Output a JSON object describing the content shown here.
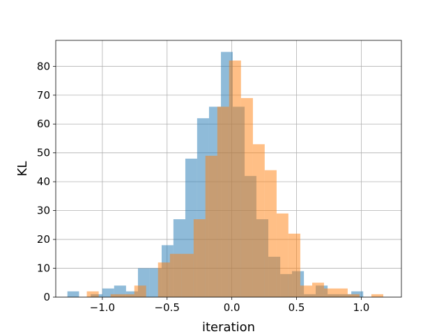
{
  "chart_data": {
    "type": "histogram",
    "title": "",
    "xlabel": "iteration",
    "ylabel": "KL",
    "xlim": [
      -1.36,
      1.31
    ],
    "ylim": [
      0,
      89
    ],
    "grid": true,
    "legend": "none",
    "bin_width": 0.0917,
    "x_ticks": [
      -1.0,
      -0.5,
      0.0,
      0.5,
      1.0
    ],
    "x_tick_labels": [
      "−1.0",
      "−0.5",
      "0.0",
      "0.5",
      "1.0"
    ],
    "y_ticks": [
      0,
      10,
      20,
      30,
      40,
      50,
      60,
      70,
      80
    ],
    "y_tick_labels": [
      "0",
      "10",
      "20",
      "30",
      "40",
      "50",
      "60",
      "70",
      "80"
    ],
    "series": [
      {
        "color": "#1f77b4",
        "alpha": 0.5,
        "bin_edges": [
          -1.27,
          -1.18,
          -1.09,
          -1.0,
          -0.909,
          -0.817,
          -0.725,
          -0.634,
          -0.542,
          -0.451,
          -0.359,
          -0.268,
          -0.176,
          -0.084,
          0.007,
          0.099,
          0.19,
          0.282,
          0.374,
          0.465,
          0.557,
          0.648,
          0.74,
          0.832,
          0.923,
          1.015
        ],
        "counts": [
          2,
          0,
          1,
          3,
          4,
          2,
          10,
          10,
          18,
          27,
          48,
          62,
          66,
          85,
          66,
          42,
          27,
          14,
          8,
          9,
          1,
          4,
          1,
          1,
          2
        ]
      },
      {
        "color": "#ff7f0e",
        "alpha": 0.5,
        "bin_edges": [
          -1.12,
          -1.028,
          -0.936,
          -0.845,
          -0.753,
          -0.662,
          -0.57,
          -0.478,
          -0.387,
          -0.295,
          -0.204,
          -0.112,
          -0.021,
          0.071,
          0.163,
          0.254,
          0.346,
          0.437,
          0.529,
          0.621,
          0.712,
          0.804,
          0.895,
          0.987,
          1.078,
          1.17
        ],
        "counts": [
          2,
          0,
          1,
          1,
          4,
          0,
          12,
          15,
          15,
          27,
          49,
          66,
          82,
          69,
          53,
          44,
          29,
          22,
          4,
          5,
          3,
          3,
          1,
          0,
          1
        ]
      }
    ]
  }
}
